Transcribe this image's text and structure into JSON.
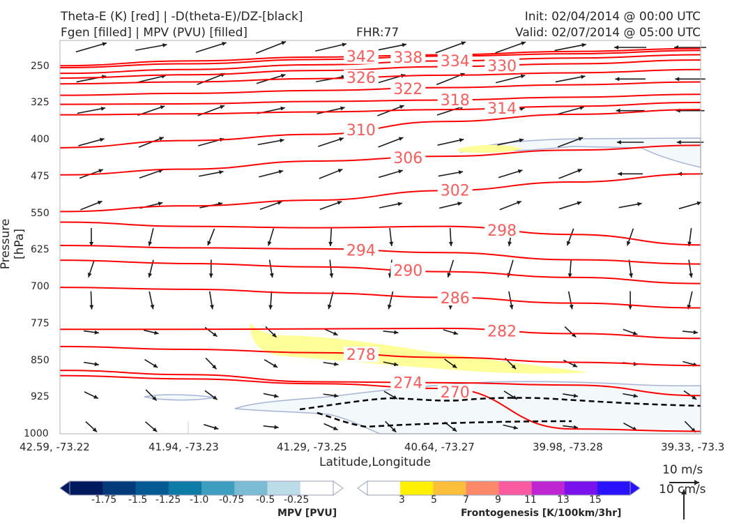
{
  "header": {
    "title_line1": "Theta-E (K) [red] | -D(theta-E)/DZ-[black]",
    "title_line2": "Fgen [filled] | MPV (PVU) [filled]",
    "fhr": "FHR:77",
    "init": "Init: 02/04/2014 @ 00:00 UTC",
    "valid": "Valid: 02/07/2014 @ 05:00 UTC"
  },
  "chart_data": {
    "type": "cross-section",
    "xlabel": "Latitude,Longitude",
    "ylabel": "Pressure [hPa]",
    "x_ticks": [
      "42.59, -73.22",
      "41.94, -73.23",
      "41.29, -73.25",
      "40.64, -73.27",
      "39.98, -73.28",
      "39.33, -73.3"
    ],
    "y_ticks": [
      250,
      325,
      400,
      475,
      550,
      625,
      700,
      775,
      850,
      925,
      1000
    ],
    "ylim": [
      1000,
      175
    ],
    "theta_e_color": "#ff0000",
    "theta_e_label_color": "#ff5a5a",
    "theta_e_contours": [
      {
        "label": "342",
        "values": [
          228,
          218,
          210,
          205,
          198,
          192
        ]
      },
      {
        "label": "338",
        "values": [
          232,
          224,
          215,
          208,
          203,
          196
        ]
      },
      {
        "label": "334",
        "values": [
          244,
          236,
          226,
          218,
          212,
          205
        ]
      },
      {
        "label": "330",
        "values": [
          254,
          247,
          238,
          230,
          224,
          216
        ]
      },
      {
        "label": "326",
        "values": [
          266,
          262,
          255,
          248,
          243,
          236
        ]
      },
      {
        "label": "322",
        "values": [
          290,
          286,
          280,
          274,
          268,
          262
        ]
      },
      {
        "label": "318",
        "values": [
          309,
          308,
          303,
          300,
          294,
          288
        ]
      },
      {
        "label": "314",
        "values": [
          331,
          329,
          325,
          320,
          313,
          305
        ]
      },
      {
        "label": "310",
        "values": [
          400,
          385,
          372,
          345,
          330,
          320
        ]
      },
      {
        "label": "306",
        "values": [
          457,
          445,
          428,
          418,
          405,
          395
        ]
      },
      {
        "label": "302",
        "values": [
          534,
          522,
          510,
          490,
          472,
          455
        ]
      },
      {
        "label": "298",
        "values": [
          556,
          565,
          568,
          565,
          582,
          604
        ]
      },
      {
        "label": "294",
        "values": [
          605,
          610,
          612,
          620,
          635,
          644
        ]
      },
      {
        "label": "290",
        "values": [
          636,
          643,
          650,
          660,
          672,
          685
        ]
      },
      {
        "label": "286",
        "values": [
          693,
          697,
          705,
          714,
          726,
          736
        ]
      },
      {
        "label": "282",
        "values": [
          781,
          781,
          780,
          779,
          790,
          800
        ]
      },
      {
        "label": "278",
        "values": [
          817,
          823,
          830,
          840,
          850,
          857
        ]
      },
      {
        "label": "274",
        "values": [
          867,
          876,
          891,
          893,
          898,
          920
        ]
      },
      {
        "label": "270",
        "values": [
          878,
          885,
          895,
          905,
          990,
          995
        ]
      }
    ],
    "wind_barb_units": [
      "10 m/s",
      "10 cm/s"
    ],
    "fgen_shading": "yellow bands near 800-850 hPa and 405 hPa",
    "mpv_shading": "light blue region near 380-420 hPa and 900-1000 hPa",
    "dashed_black_contour": "near 900-960 hPa",
    "colorbars": [
      {
        "title": "MPV [PVU]",
        "ticks": [
          "-1.75",
          "-1.5",
          "-1.25",
          "-1.0",
          "-0.75",
          "-0.5",
          "-0.25"
        ],
        "colors": [
          "#011a5e",
          "#023a7a",
          "#065a94",
          "#0c7ba6",
          "#3e9ebf",
          "#7bbcd4",
          "#bcdde8",
          "#ffffff"
        ]
      },
      {
        "title": "Frontogenesis [K/100km/3hr]",
        "ticks": [
          "3",
          "5",
          "7",
          "9",
          "11",
          "13",
          "15"
        ],
        "colors": [
          "#ffffff",
          "#fff000",
          "#fbbf3c",
          "#fc8a6a",
          "#fa5aa0",
          "#be26d2",
          "#7a12ee",
          "#2a12fa"
        ]
      }
    ]
  }
}
